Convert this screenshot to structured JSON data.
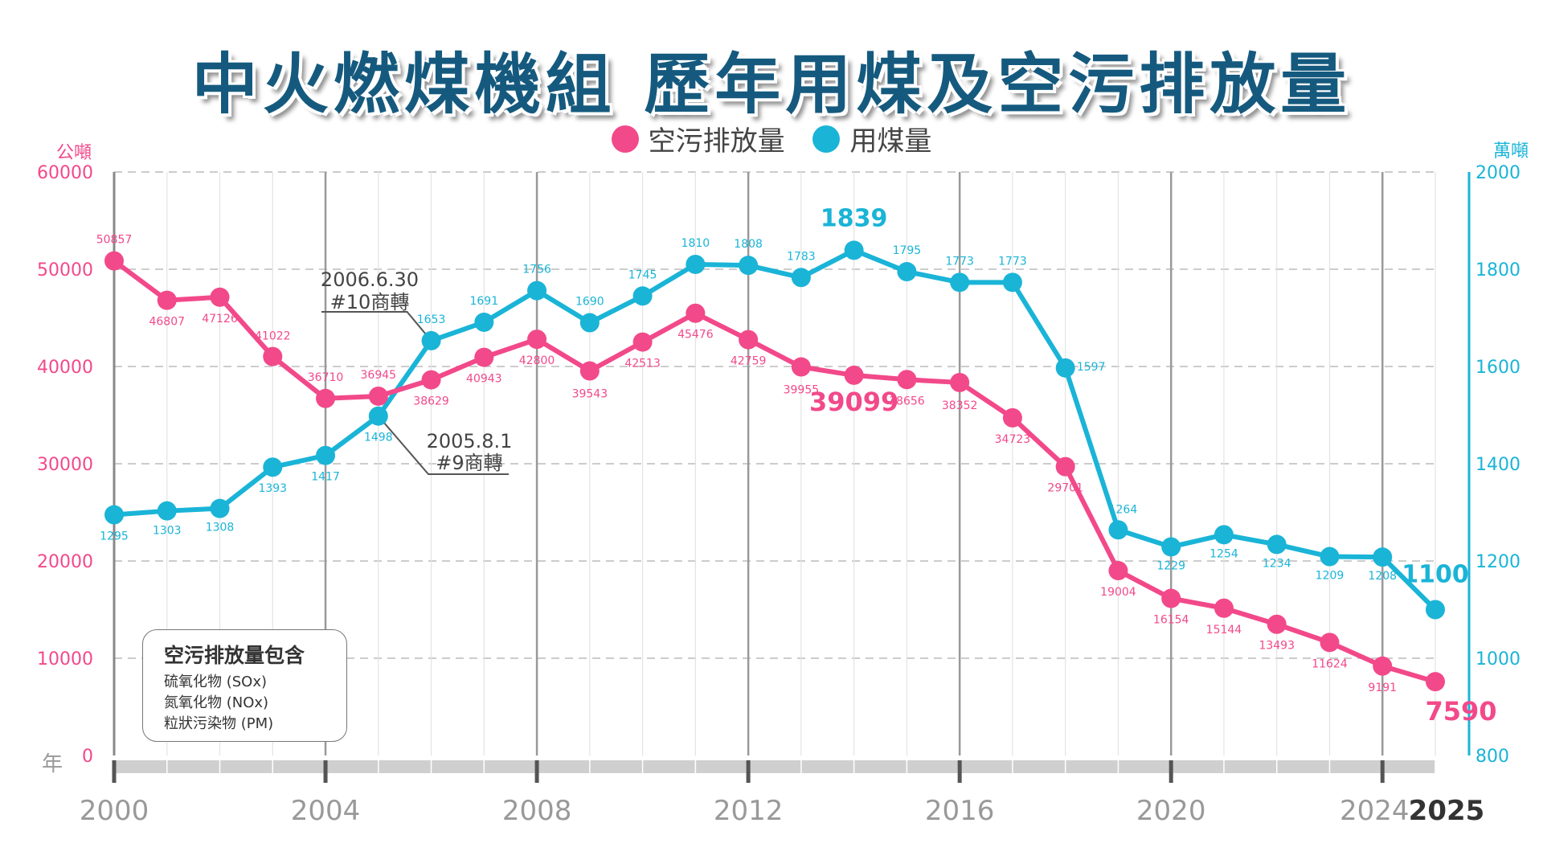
{
  "title": "中火燃煤機組 歷年用煤及空污排放量",
  "note": {
    "heading": "空污排放量包含",
    "lines": [
      "硫氧化物 (SOx)",
      "氮氧化物 (NOx)",
      "粒狀污染物 (PM)"
    ]
  },
  "chart_data": {
    "type": "line",
    "x_unit": "年",
    "x": [
      2000,
      2001,
      2002,
      2003,
      2004,
      2005,
      2006,
      2007,
      2008,
      2009,
      2010,
      2011,
      2012,
      2013,
      2014,
      2015,
      2016,
      2017,
      2018,
      2019,
      2020,
      2021,
      2022,
      2023,
      2024,
      2025
    ],
    "x_ticks": [
      "2000",
      "2004",
      "2008",
      "2012",
      "2016",
      "2020",
      "2024",
      "2025"
    ],
    "xlim": [
      2000,
      2025
    ],
    "y_left": {
      "unit": "公噸",
      "ylim": [
        0,
        60000
      ],
      "ticks": [
        "0",
        "10000",
        "20000",
        "30000",
        "40000",
        "50000",
        "60000"
      ]
    },
    "y_right": {
      "unit": "萬噸",
      "ylim": [
        800,
        2000
      ],
      "ticks": [
        "800",
        "1000",
        "1200",
        "1400",
        "1600",
        "1800",
        "2000"
      ]
    },
    "grid": true,
    "legend_position": "top-center",
    "colors": {
      "emissions": "#f2498a",
      "coal": "#1ab4d7",
      "axis": "#888888",
      "grid": "#bbbbbb"
    },
    "series": [
      {
        "name": "空污排放量",
        "axis": "left",
        "values": [
          50857,
          46807,
          47126,
          41022,
          36710,
          36945,
          38629,
          40943,
          42800,
          39543,
          42513,
          45476,
          42759,
          39955,
          39099,
          38656,
          38352,
          34723,
          29701,
          19004,
          16154,
          15144,
          13493,
          11624,
          9191,
          7590
        ],
        "labels": [
          "50857",
          "46807",
          "47126",
          "41022",
          "36710",
          "36945",
          "38629",
          "40943",
          "42800",
          "39543",
          "42513",
          "45476",
          "42759",
          "39955",
          "39099",
          "38656",
          "38352",
          "34723",
          "29701",
          "19004",
          "16154",
          "15144",
          "13493",
          "11624",
          "9191",
          "7590"
        ]
      },
      {
        "name": "用煤量",
        "axis": "right",
        "values": [
          1295,
          1303,
          1308,
          1393,
          1417,
          1498,
          1653,
          1691,
          1756,
          1690,
          1745,
          1810,
          1808,
          1783,
          1839,
          1795,
          1773,
          1773,
          1597,
          1264,
          1229,
          1254,
          1234,
          1209,
          1208,
          1100
        ],
        "labels": [
          "1295",
          "1303",
          "1308",
          "1393",
          "1417",
          "1498",
          "1653",
          "1691",
          "1756",
          "1690",
          "1745",
          "1810",
          "1808",
          "1783",
          "1839",
          "1795",
          "1773",
          "1773",
          "1597",
          "1264",
          "1229",
          "1254",
          "1234",
          "1209",
          "1208",
          "1100"
        ]
      }
    ],
    "annotations": [
      {
        "lines": [
          "2006.6.30",
          "#10商轉"
        ],
        "x": 2006
      },
      {
        "lines": [
          "2005.8.1",
          "#9商轉"
        ],
        "x": 2005
      }
    ]
  }
}
